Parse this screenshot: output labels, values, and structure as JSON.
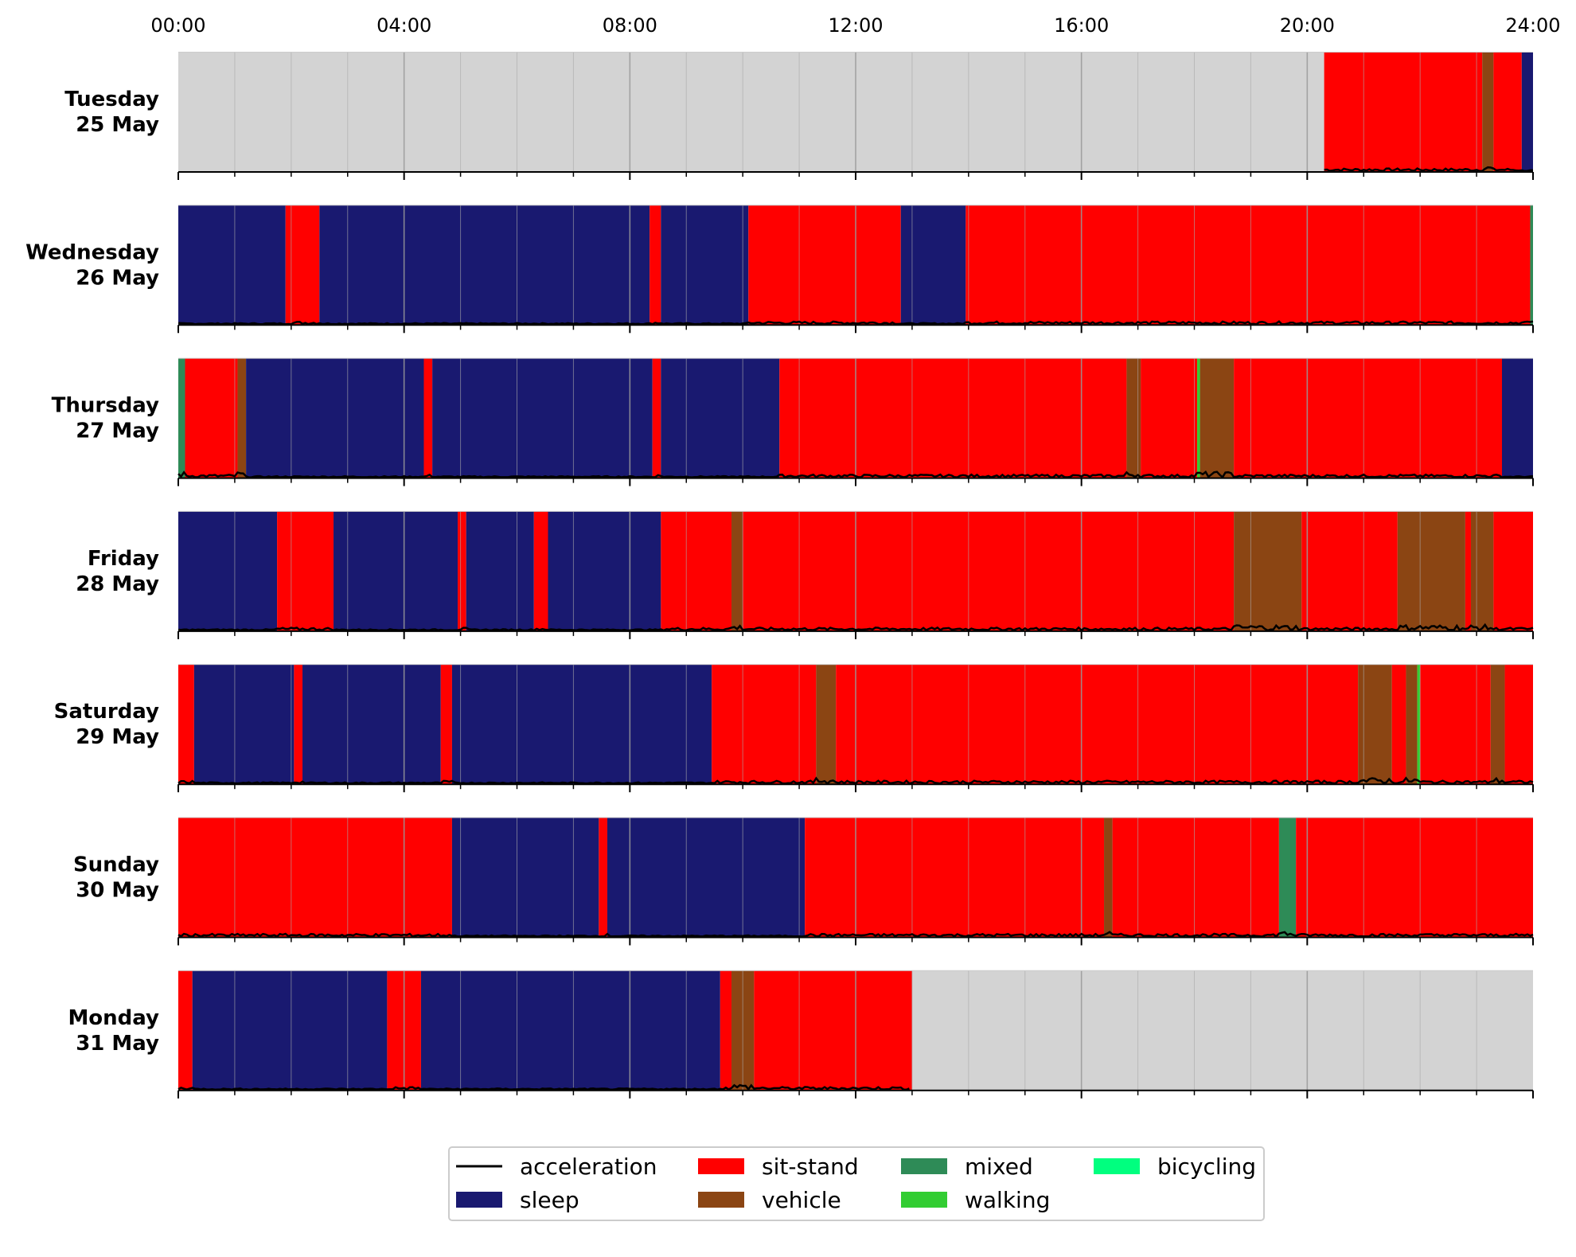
{
  "chart_data": {
    "type": "timeline",
    "x_axis": {
      "range_hours": [
        0,
        24
      ],
      "tick_labels": [
        "00:00",
        "04:00",
        "08:00",
        "12:00",
        "16:00",
        "20:00",
        "24:00"
      ],
      "tick_hours": [
        0,
        4,
        8,
        12,
        16,
        20,
        24
      ],
      "minor_tick_step_hours": 1
    },
    "colors": {
      "no-data": "#d3d3d3",
      "sleep": "#191970",
      "sit-stand": "#ff0000",
      "vehicle": "#8b4513",
      "mixed": "#2e8b57",
      "walking": "#32cd32",
      "bicycling": "#00ff7f",
      "acceleration": "#000000",
      "major-grid": "#999999",
      "minor-grid": "#aaaaaa"
    },
    "days": [
      {
        "weekday": "Tuesday",
        "date": "25 May",
        "segments": [
          {
            "start": 0,
            "end": 20.3,
            "activity": "no-data"
          },
          {
            "start": 20.3,
            "end": 23.1,
            "activity": "sit-stand"
          },
          {
            "start": 23.1,
            "end": 23.3,
            "activity": "vehicle"
          },
          {
            "start": 23.3,
            "end": 23.8,
            "activity": "sit-stand"
          },
          {
            "start": 23.8,
            "end": 24,
            "activity": "sleep"
          }
        ]
      },
      {
        "weekday": "Wednesday",
        "date": "26 May",
        "segments": [
          {
            "start": 0,
            "end": 1.9,
            "activity": "sleep"
          },
          {
            "start": 1.9,
            "end": 2.5,
            "activity": "sit-stand"
          },
          {
            "start": 2.5,
            "end": 8.35,
            "activity": "sleep"
          },
          {
            "start": 8.35,
            "end": 8.55,
            "activity": "sit-stand"
          },
          {
            "start": 8.55,
            "end": 10.1,
            "activity": "sleep"
          },
          {
            "start": 10.1,
            "end": 12.8,
            "activity": "sit-stand"
          },
          {
            "start": 12.8,
            "end": 13.95,
            "activity": "sleep"
          },
          {
            "start": 13.95,
            "end": 23.95,
            "activity": "sit-stand"
          },
          {
            "start": 23.95,
            "end": 24,
            "activity": "mixed"
          }
        ]
      },
      {
        "weekday": "Thursday",
        "date": "27 May",
        "segments": [
          {
            "start": 0,
            "end": 0.12,
            "activity": "mixed"
          },
          {
            "start": 0.12,
            "end": 1.05,
            "activity": "sit-stand"
          },
          {
            "start": 1.05,
            "end": 1.2,
            "activity": "vehicle"
          },
          {
            "start": 1.2,
            "end": 4.35,
            "activity": "sleep"
          },
          {
            "start": 4.35,
            "end": 4.5,
            "activity": "sit-stand"
          },
          {
            "start": 4.5,
            "end": 8.4,
            "activity": "sleep"
          },
          {
            "start": 8.4,
            "end": 8.55,
            "activity": "sit-stand"
          },
          {
            "start": 8.55,
            "end": 10.65,
            "activity": "sleep"
          },
          {
            "start": 10.65,
            "end": 16.8,
            "activity": "sit-stand"
          },
          {
            "start": 16.8,
            "end": 17.05,
            "activity": "vehicle"
          },
          {
            "start": 17.05,
            "end": 18.05,
            "activity": "sit-stand"
          },
          {
            "start": 18.05,
            "end": 18.1,
            "activity": "walking"
          },
          {
            "start": 18.1,
            "end": 18.7,
            "activity": "vehicle"
          },
          {
            "start": 18.7,
            "end": 23.45,
            "activity": "sit-stand"
          },
          {
            "start": 23.45,
            "end": 24,
            "activity": "sleep"
          }
        ]
      },
      {
        "weekday": "Friday",
        "date": "28 May",
        "segments": [
          {
            "start": 0,
            "end": 1.75,
            "activity": "sleep"
          },
          {
            "start": 1.75,
            "end": 2.75,
            "activity": "sit-stand"
          },
          {
            "start": 2.75,
            "end": 4.95,
            "activity": "sleep"
          },
          {
            "start": 4.95,
            "end": 5.1,
            "activity": "sit-stand"
          },
          {
            "start": 5.1,
            "end": 6.3,
            "activity": "sleep"
          },
          {
            "start": 6.3,
            "end": 6.55,
            "activity": "sit-stand"
          },
          {
            "start": 6.55,
            "end": 8.55,
            "activity": "sleep"
          },
          {
            "start": 8.55,
            "end": 9.8,
            "activity": "sit-stand"
          },
          {
            "start": 9.8,
            "end": 10.0,
            "activity": "vehicle"
          },
          {
            "start": 10.0,
            "end": 18.7,
            "activity": "sit-stand"
          },
          {
            "start": 18.7,
            "end": 19.9,
            "activity": "vehicle"
          },
          {
            "start": 19.9,
            "end": 21.6,
            "activity": "sit-stand"
          },
          {
            "start": 21.6,
            "end": 22.8,
            "activity": "vehicle"
          },
          {
            "start": 22.8,
            "end": 22.9,
            "activity": "sit-stand"
          },
          {
            "start": 22.9,
            "end": 23.3,
            "activity": "vehicle"
          },
          {
            "start": 23.3,
            "end": 24,
            "activity": "sit-stand"
          }
        ]
      },
      {
        "weekday": "Saturday",
        "date": "29 May",
        "segments": [
          {
            "start": 0,
            "end": 0.28,
            "activity": "sit-stand"
          },
          {
            "start": 0.28,
            "end": 2.05,
            "activity": "sleep"
          },
          {
            "start": 2.05,
            "end": 2.2,
            "activity": "sit-stand"
          },
          {
            "start": 2.2,
            "end": 4.65,
            "activity": "sleep"
          },
          {
            "start": 4.65,
            "end": 4.85,
            "activity": "sit-stand"
          },
          {
            "start": 4.85,
            "end": 9.45,
            "activity": "sleep"
          },
          {
            "start": 9.45,
            "end": 11.3,
            "activity": "sit-stand"
          },
          {
            "start": 11.3,
            "end": 11.65,
            "activity": "vehicle"
          },
          {
            "start": 11.65,
            "end": 20.9,
            "activity": "sit-stand"
          },
          {
            "start": 20.9,
            "end": 21.5,
            "activity": "vehicle"
          },
          {
            "start": 21.5,
            "end": 21.75,
            "activity": "sit-stand"
          },
          {
            "start": 21.75,
            "end": 21.95,
            "activity": "vehicle"
          },
          {
            "start": 21.95,
            "end": 22.0,
            "activity": "walking"
          },
          {
            "start": 22.0,
            "end": 23.25,
            "activity": "sit-stand"
          },
          {
            "start": 23.25,
            "end": 23.5,
            "activity": "vehicle"
          },
          {
            "start": 23.5,
            "end": 24,
            "activity": "sit-stand"
          }
        ]
      },
      {
        "weekday": "Sunday",
        "date": "30 May",
        "segments": [
          {
            "start": 0,
            "end": 4.85,
            "activity": "sit-stand"
          },
          {
            "start": 4.85,
            "end": 7.45,
            "activity": "sleep"
          },
          {
            "start": 7.45,
            "end": 7.6,
            "activity": "sit-stand"
          },
          {
            "start": 7.6,
            "end": 11.1,
            "activity": "sleep"
          },
          {
            "start": 11.1,
            "end": 16.4,
            "activity": "sit-stand"
          },
          {
            "start": 16.4,
            "end": 16.55,
            "activity": "vehicle"
          },
          {
            "start": 16.55,
            "end": 19.5,
            "activity": "sit-stand"
          },
          {
            "start": 19.5,
            "end": 19.8,
            "activity": "mixed"
          },
          {
            "start": 19.8,
            "end": 24,
            "activity": "sit-stand"
          }
        ]
      },
      {
        "weekday": "Monday",
        "date": "31 May",
        "segments": [
          {
            "start": 0,
            "end": 0.25,
            "activity": "sit-stand"
          },
          {
            "start": 0.25,
            "end": 3.7,
            "activity": "sleep"
          },
          {
            "start": 3.7,
            "end": 4.3,
            "activity": "sit-stand"
          },
          {
            "start": 4.3,
            "end": 9.6,
            "activity": "sleep"
          },
          {
            "start": 9.6,
            "end": 9.8,
            "activity": "sit-stand"
          },
          {
            "start": 9.8,
            "end": 10.2,
            "activity": "vehicle"
          },
          {
            "start": 10.2,
            "end": 13.0,
            "activity": "sit-stand"
          },
          {
            "start": 13.0,
            "end": 24,
            "activity": "no-data"
          }
        ]
      }
    ],
    "legend": {
      "placement": "bottom-center",
      "entries": [
        {
          "label": "acceleration",
          "key": "acceleration",
          "kind": "line"
        },
        {
          "label": "sleep",
          "key": "sleep",
          "kind": "patch"
        },
        {
          "label": "sit-stand",
          "key": "sit-stand",
          "kind": "patch"
        },
        {
          "label": "vehicle",
          "key": "vehicle",
          "kind": "patch"
        },
        {
          "label": "mixed",
          "key": "mixed",
          "kind": "patch"
        },
        {
          "label": "walking",
          "key": "walking",
          "kind": "patch"
        },
        {
          "label": "bicycling",
          "key": "bicycling",
          "kind": "patch"
        }
      ]
    }
  }
}
